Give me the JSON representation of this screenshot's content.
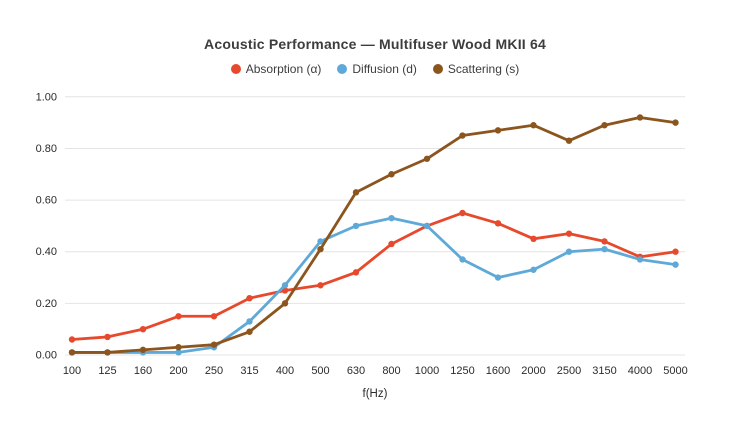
{
  "chart_data": {
    "type": "line",
    "title": "Acoustic Performance — Multifuser Wood MKII 64",
    "xlabel": "f(Hz)",
    "ylabel": "",
    "ylim": [
      0,
      1.0
    ],
    "y_ticks": [
      0.0,
      0.2,
      0.4,
      0.6,
      0.8,
      1.0
    ],
    "y_tick_labels": [
      "0.00",
      "0.20",
      "0.40",
      "0.60",
      "0.80",
      "1.00"
    ],
    "categories": [
      100,
      125,
      160,
      200,
      250,
      315,
      400,
      500,
      630,
      800,
      1000,
      1250,
      1600,
      2000,
      2500,
      3150,
      4000,
      5000
    ],
    "grid": true,
    "legend_position": "top-center",
    "series": [
      {
        "name": "Absorption (α)",
        "color": "#e7492d",
        "values": [
          0.06,
          0.07,
          0.1,
          0.15,
          0.15,
          0.22,
          0.25,
          0.27,
          0.32,
          0.43,
          0.5,
          0.55,
          0.51,
          0.45,
          0.47,
          0.44,
          0.38,
          0.4
        ]
      },
      {
        "name": "Diffusion (d)",
        "color": "#5fa9d8",
        "values": [
          0.01,
          0.01,
          0.01,
          0.01,
          0.03,
          0.13,
          0.27,
          0.44,
          0.5,
          0.53,
          0.5,
          0.37,
          0.3,
          0.33,
          0.4,
          0.41,
          0.37,
          0.35
        ]
      },
      {
        "name": "Scattering (s)",
        "color": "#8b551d",
        "values": [
          0.01,
          0.01,
          0.02,
          0.03,
          0.04,
          0.09,
          0.2,
          0.41,
          0.63,
          0.7,
          0.76,
          0.85,
          0.87,
          0.89,
          0.83,
          0.89,
          0.92,
          0.9
        ]
      }
    ]
  },
  "colors": {
    "background": "#ffffff",
    "gridline": "#e4e4e4",
    "title_text": "#3d3d3d",
    "tick_text": "#2b2b2b",
    "legend_text": "#3d3d3d"
  }
}
